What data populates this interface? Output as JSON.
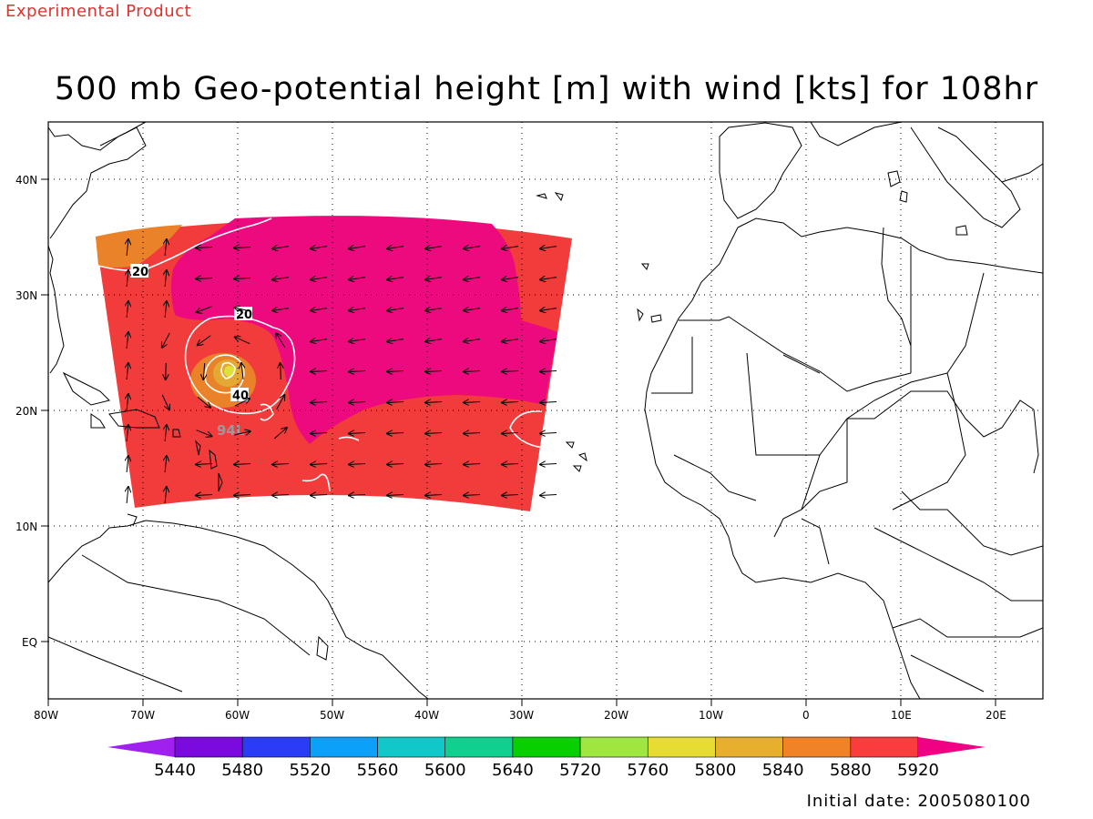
{
  "header": {
    "experimental_label": "Experimental Product",
    "title": "500 mb Geo-potential height [m] with wind [kts] for 108hr",
    "initial_date": "Initial date: 2005080100"
  },
  "map": {
    "lon_range": [
      -80,
      25
    ],
    "lat_range": [
      -5,
      45
    ],
    "x_ticks": [
      "80W",
      "70W",
      "60W",
      "50W",
      "40W",
      "30W",
      "20W",
      "10W",
      "0",
      "10E",
      "20E"
    ],
    "y_ticks": [
      "40N",
      "30N",
      "20N",
      "10N",
      "EQ"
    ],
    "storm_label": "94L",
    "contour_labels": [
      "20",
      "20",
      "40"
    ],
    "colors": {
      "fill_5880": "#f23b3b",
      "fill_5920": "#ed0a7e",
      "fill_5840": "#e98228",
      "fill_5800": "#e4a934",
      "fill_5760": "#dde23a",
      "coast": "#000000",
      "isotach": "#ffffff"
    }
  },
  "colorbar": {
    "levels": [
      "5440",
      "5480",
      "5520",
      "5560",
      "5600",
      "5640",
      "5720",
      "5760",
      "5800",
      "5840",
      "5880",
      "5920"
    ],
    "colors": [
      "#a020f0",
      "#7a0ae0",
      "#2a3cf8",
      "#0ca0f8",
      "#10c8c8",
      "#10d090",
      "#08d000",
      "#a0e640",
      "#e6dc32",
      "#e6af2e",
      "#f08228",
      "#fa3c3c",
      "#f00082"
    ]
  }
}
